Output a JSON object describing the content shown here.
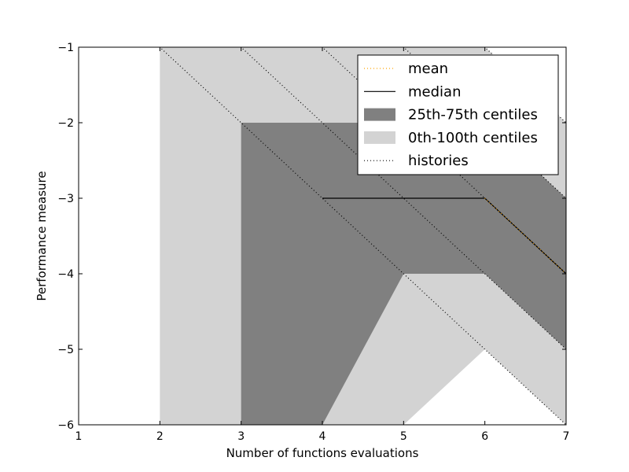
{
  "chart_data": {
    "type": "area",
    "xlabel": "Number of functions evaluations",
    "ylabel": "Performance measure",
    "xlim": [
      1,
      7
    ],
    "ylim": [
      -6,
      -1
    ],
    "xticks": [
      1,
      2,
      3,
      4,
      5,
      6,
      7
    ],
    "yticks": [
      -6,
      -5,
      -4,
      -3,
      -2,
      -1
    ],
    "xtick_labels": [
      "1",
      "2",
      "3",
      "4",
      "5",
      "6",
      "7"
    ],
    "ytick_labels": [
      "−6",
      "−5",
      "−4",
      "−3",
      "−2",
      "−1"
    ],
    "grid": false,
    "legend_position": "top-right",
    "legend": [
      {
        "label": "mean",
        "kind": "dotted-line",
        "color": "#ffa500"
      },
      {
        "label": "median",
        "kind": "solid-line",
        "color": "#000000"
      },
      {
        "label": "25th-75th centiles",
        "kind": "patch",
        "color": "#808080"
      },
      {
        "label": "0th-100th centiles",
        "kind": "patch",
        "color": "#d3d3d3"
      },
      {
        "label": "histories",
        "kind": "dotted-line",
        "color": "#000000"
      }
    ],
    "band_0_100": {
      "color": "#d3d3d3",
      "x": [
        2,
        3,
        4,
        5,
        6,
        7
      ],
      "upper": [
        -1,
        -1,
        -1,
        -1,
        -1,
        -2
      ],
      "lower": [
        -6,
        -6,
        -6,
        -6,
        -5,
        -6
      ]
    },
    "band_25_75": {
      "color": "#808080",
      "x": [
        3,
        4,
        5,
        6,
        7
      ],
      "upper": [
        -2,
        -2,
        -2,
        -2,
        -3
      ],
      "lower": [
        -6,
        -6,
        -4,
        -4,
        -5
      ]
    },
    "median": {
      "color": "#000000",
      "x": [
        4,
        5,
        6,
        7
      ],
      "y": [
        -3,
        -3,
        -3,
        -4
      ]
    },
    "mean": {
      "color": "#ffa500",
      "x": [
        6,
        7
      ],
      "y": [
        -3,
        -4
      ]
    },
    "histories": [
      {
        "x": [
          1,
          2,
          3,
          4,
          5,
          6,
          7
        ],
        "y": [
          0,
          -1,
          -2,
          -3,
          -4,
          -5,
          -6
        ]
      },
      {
        "x": [
          2,
          3,
          4,
          5,
          6,
          7
        ],
        "y": [
          0,
          -1,
          -2,
          -3,
          -4,
          -5
        ]
      },
      {
        "x": [
          3,
          4,
          5,
          6,
          7
        ],
        "y": [
          0,
          -1,
          -2,
          -3,
          -4
        ]
      },
      {
        "x": [
          4,
          5,
          6,
          7
        ],
        "y": [
          0,
          -1,
          -2,
          -3
        ]
      },
      {
        "x": [
          5,
          6,
          7
        ],
        "y": [
          0,
          -1,
          -2
        ]
      }
    ]
  }
}
